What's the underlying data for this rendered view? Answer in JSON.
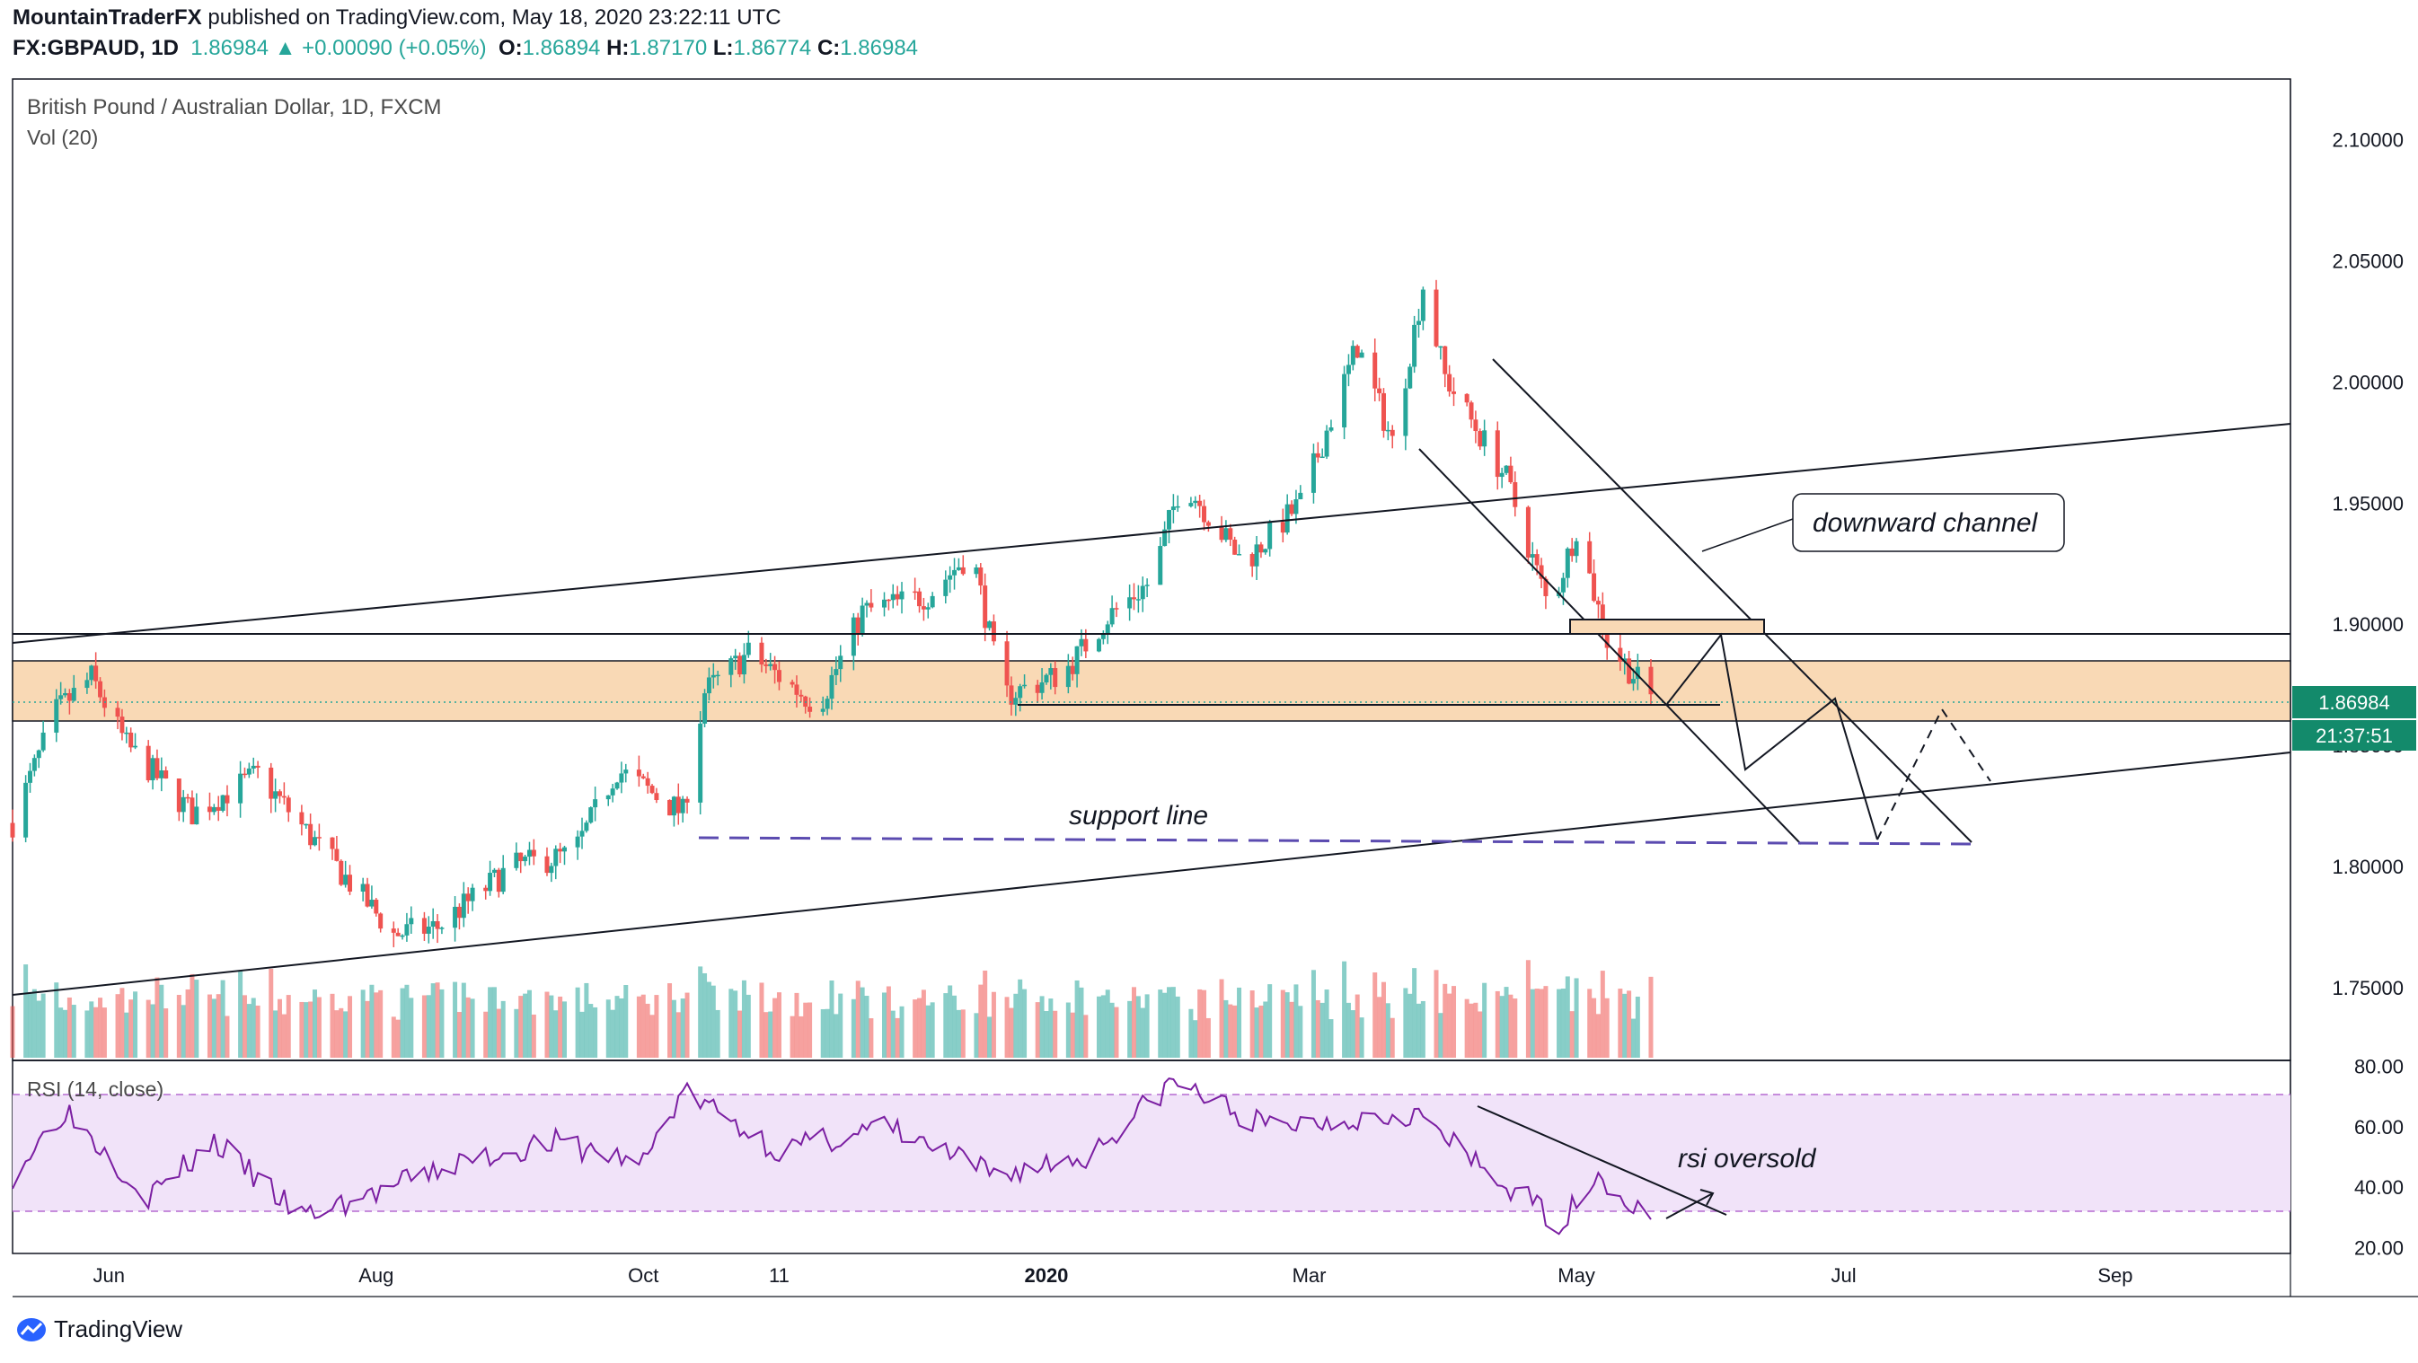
{
  "header": {
    "author": "MountainTraderFX",
    "published": "published on TradingView.com, May 18, 2020 23:22:11 UTC",
    "symbol": "FX:GBPAUD, 1D",
    "last": "1.86984",
    "change": "+0.00090 (+0.05%)",
    "o_label": "O:",
    "o": "1.86894",
    "h_label": "H:",
    "h": "1.87170",
    "l_label": "L:",
    "l": "1.86774",
    "c_label": "C:",
    "c": "1.86984"
  },
  "chart_title": "British Pound / Australian Dollar, 1D, FXCM",
  "vol_title": "Vol (20)",
  "rsi_title": "RSI (14, close)",
  "brand": "TradingView",
  "colors": {
    "up": "#26a69a",
    "down": "#ef5350",
    "zone": "#f9d9b5",
    "rsi_line": "#7b1fa2",
    "rsi_band": "#f1e3f9",
    "support": "#5b4bb0",
    "badge": "#138a6b"
  },
  "price_badge": "1.86984",
  "time_badge": "21:37:51",
  "chart_data": [
    {
      "type": "candlestick",
      "title": "British Pound / Australian Dollar, 1D, FXCM",
      "x_ticks": [
        "Jun",
        "Aug",
        "Oct",
        "11",
        "2020",
        "Mar",
        "May",
        "Jul",
        "Sep"
      ],
      "y_ticks": [
        "2.10000",
        "2.05000",
        "2.00000",
        "1.95000",
        "1.90000",
        "1.85000",
        "1.80000",
        "1.75000"
      ],
      "ylim": [
        1.72,
        2.125
      ],
      "x_range": [
        "2019-05-10",
        "2020-10-11"
      ],
      "last_price": 1.86984,
      "approx_close_path": [
        [
          "2019-05-10",
          1.818
        ],
        [
          "2019-05-20",
          1.864
        ],
        [
          "2019-05-28",
          1.878
        ],
        [
          "2019-06-05",
          1.85
        ],
        [
          "2019-06-20",
          1.822
        ],
        [
          "2019-07-05",
          1.838
        ],
        [
          "2019-07-20",
          1.806
        ],
        [
          "2019-08-05",
          1.772
        ],
        [
          "2019-08-15",
          1.775
        ],
        [
          "2019-09-01",
          1.8
        ],
        [
          "2019-09-15",
          1.805
        ],
        [
          "2019-09-25",
          1.84
        ],
        [
          "2019-10-10",
          1.822
        ],
        [
          "2019-10-15",
          1.872
        ],
        [
          "2019-10-25",
          1.888
        ],
        [
          "2019-11-10",
          1.866
        ],
        [
          "2019-11-20",
          1.905
        ],
        [
          "2019-12-05",
          1.912
        ],
        [
          "2019-12-15",
          1.93
        ],
        [
          "2019-12-22",
          1.87
        ],
        [
          "2020-01-05",
          1.88
        ],
        [
          "2020-01-15",
          1.903
        ],
        [
          "2020-01-25",
          1.918
        ],
        [
          "2020-02-01",
          1.96
        ],
        [
          "2020-02-15",
          1.925
        ],
        [
          "2020-02-28",
          1.95
        ],
        [
          "2020-03-05",
          1.98
        ],
        [
          "2020-03-12",
          2.015
        ],
        [
          "2020-03-20",
          1.975
        ],
        [
          "2020-03-27",
          2.04
        ],
        [
          "2020-04-01",
          2.002
        ],
        [
          "2020-04-15",
          1.96
        ],
        [
          "2020-04-25",
          1.905
        ],
        [
          "2020-05-01",
          1.94
        ],
        [
          "2020-05-08",
          1.893
        ],
        [
          "2020-05-18",
          1.87
        ]
      ]
    },
    {
      "type": "line",
      "title": "RSI (14, close)",
      "y_ticks": [
        "80.00",
        "60.00",
        "40.00",
        "20.00"
      ],
      "ylim": [
        18,
        82
      ],
      "band": [
        30,
        70
      ],
      "approx_path": [
        [
          "2019-05-10",
          44
        ],
        [
          "2019-05-22",
          66
        ],
        [
          "2019-06-10",
          37
        ],
        [
          "2019-06-25",
          55
        ],
        [
          "2019-07-15",
          30
        ],
        [
          "2019-08-01",
          38
        ],
        [
          "2019-08-20",
          48
        ],
        [
          "2019-09-10",
          55
        ],
        [
          "2019-10-01",
          48
        ],
        [
          "2019-10-10",
          72
        ],
        [
          "2019-11-01",
          52
        ],
        [
          "2019-11-25",
          60
        ],
        [
          "2019-12-20",
          44
        ],
        [
          "2020-01-10",
          50
        ],
        [
          "2020-01-30",
          75
        ],
        [
          "2020-02-20",
          60
        ],
        [
          "2020-03-05",
          62
        ],
        [
          "2020-03-25",
          65
        ],
        [
          "2020-04-10",
          45
        ],
        [
          "2020-04-28",
          28
        ],
        [
          "2020-05-05",
          45
        ],
        [
          "2020-05-18",
          28
        ]
      ]
    }
  ],
  "annotations": {
    "channel": "downward channel",
    "support": "support line",
    "rsi": "rsi oversold"
  }
}
